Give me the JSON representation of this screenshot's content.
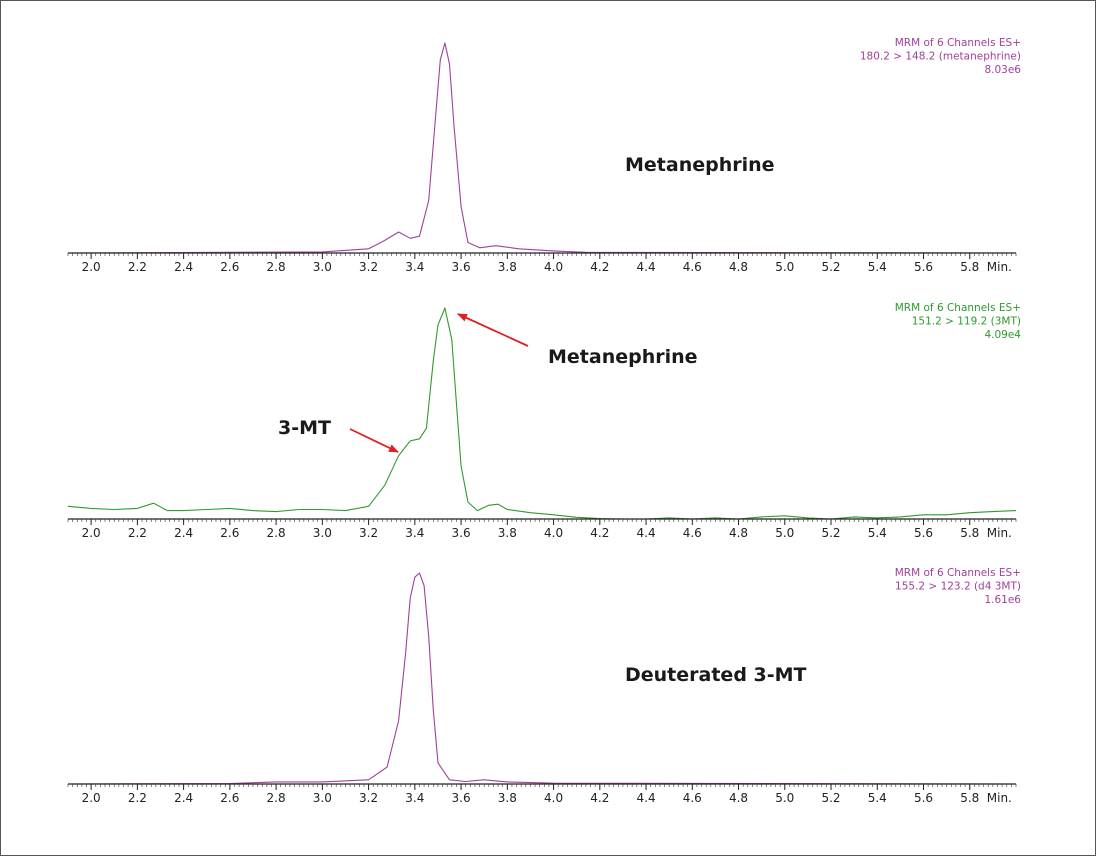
{
  "chart_data": [
    {
      "type": "line",
      "xlabel_unit": "Min.",
      "xlim": [
        1.9,
        6.0
      ],
      "x_ticks": [
        2.0,
        2.2,
        2.4,
        2.6,
        2.8,
        3.0,
        3.2,
        3.4,
        3.6,
        3.8,
        4.0,
        4.2,
        4.4,
        4.6,
        4.8,
        5.0,
        5.2,
        5.4,
        5.6,
        5.8
      ],
      "color": "#a0409c",
      "info_lines": [
        "MRM of 6 Channels ES+",
        "180.2 > 148.2 (metanephrine)",
        "8.03e6"
      ],
      "annotations": [
        {
          "text": "Metanephrine",
          "arrow": false
        }
      ],
      "series": [
        {
          "x": [
            1.9,
            3.0,
            3.2,
            3.27,
            3.33,
            3.38,
            3.42,
            3.46,
            3.49,
            3.51,
            3.53,
            3.55,
            3.57,
            3.6,
            3.63,
            3.68,
            3.75,
            3.85,
            4.0,
            4.15,
            6.0
          ],
          "y": [
            0,
            0.005,
            0.02,
            0.06,
            0.1,
            0.07,
            0.08,
            0.25,
            0.65,
            0.92,
            1.0,
            0.9,
            0.6,
            0.22,
            0.05,
            0.025,
            0.035,
            0.02,
            0.01,
            0.003,
            0
          ]
        }
      ]
    },
    {
      "type": "line",
      "xlabel_unit": "Min.",
      "xlim": [
        1.9,
        6.0
      ],
      "x_ticks": [
        2.0,
        2.2,
        2.4,
        2.6,
        2.8,
        3.0,
        3.2,
        3.4,
        3.6,
        3.8,
        4.0,
        4.2,
        4.4,
        4.6,
        4.8,
        5.0,
        5.2,
        5.4,
        5.6,
        5.8
      ],
      "color": "#2f9a2f",
      "info_lines": [
        "MRM of 6 Channels ES+",
        "151.2 > 119.2 (3MT)",
        "4.09e4"
      ],
      "annotations": [
        {
          "text": "Metanephrine",
          "arrow": true
        },
        {
          "text": "3-MT",
          "arrow": true
        }
      ],
      "series": [
        {
          "x": [
            1.9,
            2.0,
            2.1,
            2.2,
            2.27,
            2.33,
            2.4,
            2.5,
            2.6,
            2.7,
            2.8,
            2.9,
            3.0,
            3.1,
            3.2,
            3.27,
            3.33,
            3.38,
            3.42,
            3.45,
            3.48,
            3.5,
            3.53,
            3.56,
            3.58,
            3.6,
            3.63,
            3.67,
            3.72,
            3.76,
            3.8,
            3.9,
            4.0,
            4.1,
            4.2,
            4.3,
            4.4,
            4.5,
            4.6,
            4.7,
            4.8,
            4.9,
            5.0,
            5.1,
            5.2,
            5.3,
            5.4,
            5.5,
            5.6,
            5.7,
            5.8,
            5.9,
            6.0
          ],
          "y": [
            0.06,
            0.05,
            0.045,
            0.05,
            0.075,
            0.04,
            0.04,
            0.045,
            0.05,
            0.04,
            0.035,
            0.045,
            0.045,
            0.04,
            0.06,
            0.16,
            0.3,
            0.37,
            0.38,
            0.43,
            0.75,
            0.92,
            1.0,
            0.85,
            0.55,
            0.25,
            0.08,
            0.04,
            0.065,
            0.07,
            0.045,
            0.03,
            0.02,
            0.008,
            0.002,
            0.0,
            0.0,
            0.005,
            0.0,
            0.005,
            0.0,
            0.01,
            0.015,
            0.005,
            0.0,
            0.01,
            0.005,
            0.01,
            0.02,
            0.02,
            0.03,
            0.035,
            0.04
          ]
        }
      ]
    },
    {
      "type": "line",
      "xlabel_unit": "Min.",
      "xlim": [
        1.9,
        6.0
      ],
      "x_ticks": [
        2.0,
        2.2,
        2.4,
        2.6,
        2.8,
        3.0,
        3.2,
        3.4,
        3.6,
        3.8,
        4.0,
        4.2,
        4.4,
        4.6,
        4.8,
        5.0,
        5.2,
        5.4,
        5.6,
        5.8
      ],
      "color": "#a0409c",
      "info_lines": [
        "MRM of 6 Channels ES+",
        "155.2 > 123.2 (d4 3MT)",
        "1.61e6"
      ],
      "annotations": [
        {
          "text": "Deuterated 3-MT",
          "arrow": false
        }
      ],
      "series": [
        {
          "x": [
            1.9,
            2.6,
            2.8,
            3.0,
            3.2,
            3.28,
            3.33,
            3.36,
            3.38,
            3.4,
            3.42,
            3.44,
            3.46,
            3.48,
            3.5,
            3.55,
            3.62,
            3.7,
            3.8,
            4.0,
            6.0
          ],
          "y": [
            0,
            0.002,
            0.01,
            0.01,
            0.02,
            0.08,
            0.3,
            0.62,
            0.88,
            0.98,
            1.0,
            0.94,
            0.7,
            0.35,
            0.1,
            0.02,
            0.012,
            0.02,
            0.01,
            0.004,
            0
          ]
        }
      ]
    }
  ]
}
